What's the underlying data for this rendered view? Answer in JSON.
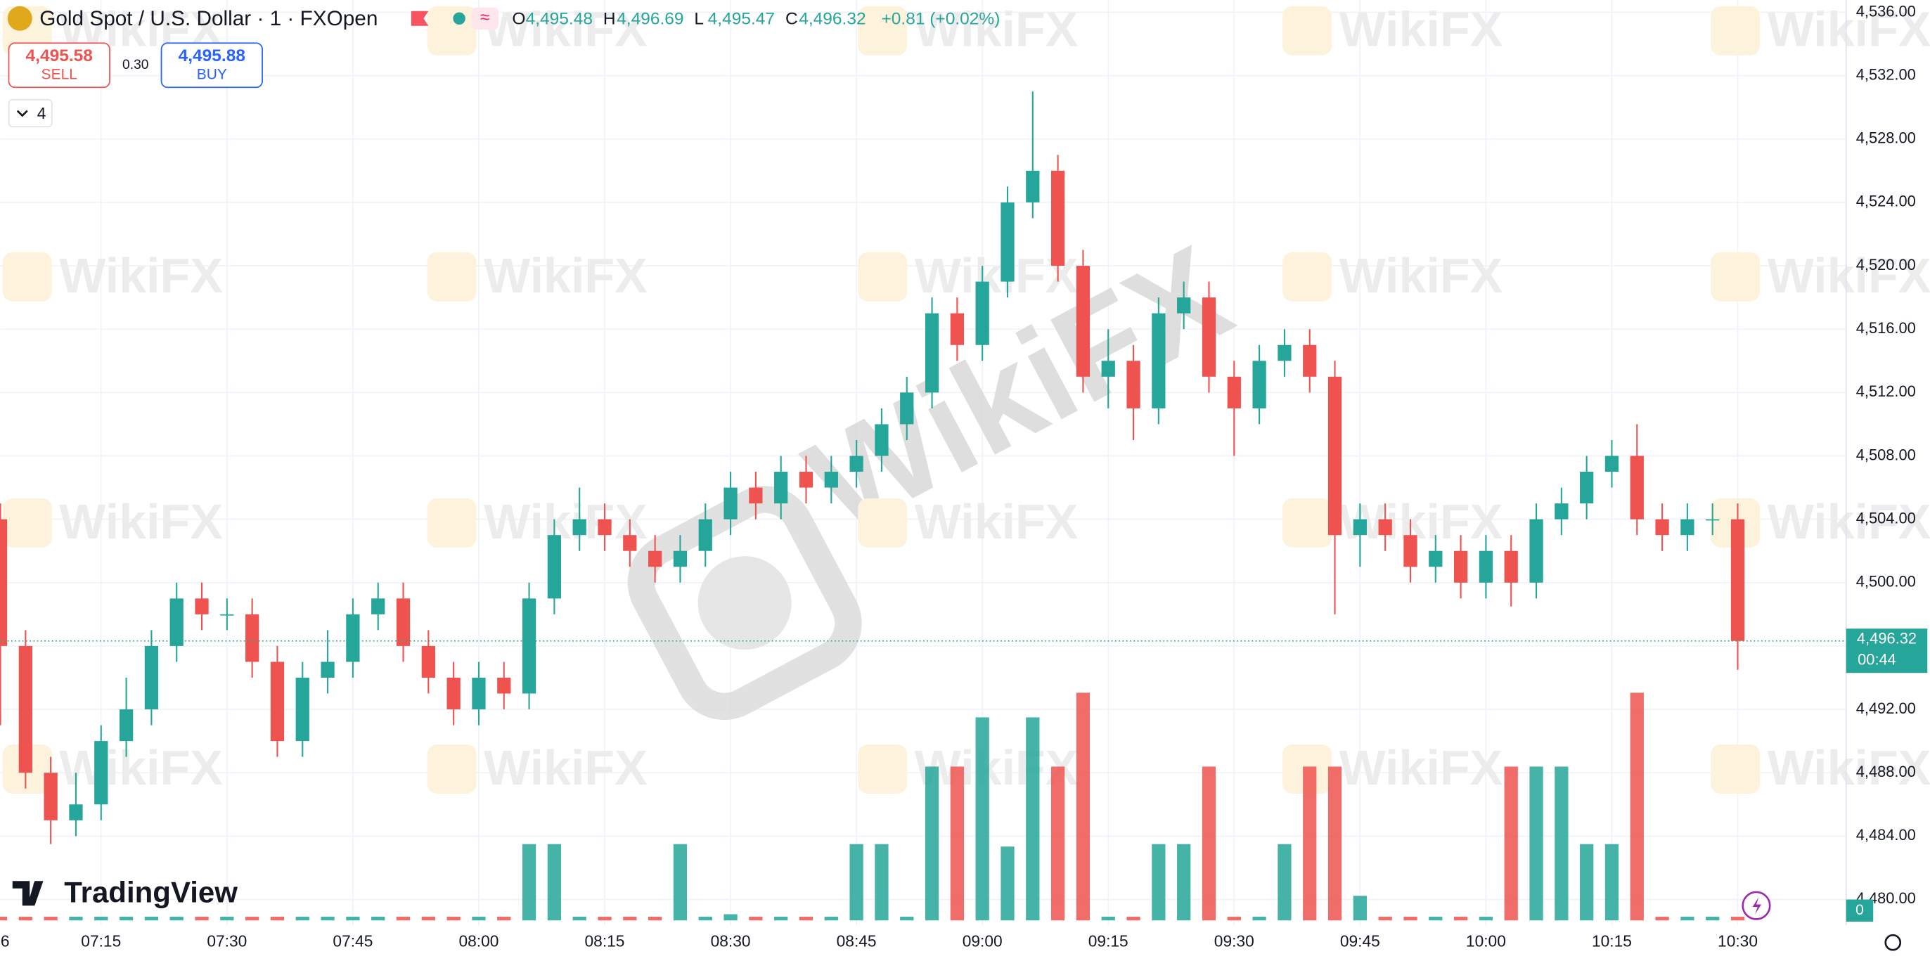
{
  "header": {
    "symbol": "Gold Spot / U.S. Dollar · 1 · FXOpen",
    "ohlc": [
      {
        "key": "O",
        "value": "4,495.48"
      },
      {
        "key": "H",
        "value": "4,496.69"
      },
      {
        "key": "L",
        "value": "4,495.47"
      },
      {
        "key": "C",
        "value": "4,496.32"
      }
    ],
    "change": "+0.81 (+0.02%)",
    "sell_price": "4,495.58",
    "sell_label": "SELL",
    "spread": "0.30",
    "buy_price": "4,495.88",
    "buy_label": "BUY",
    "indicators": "4",
    "brand": "TradingView",
    "watermark": "WikiFX"
  },
  "chart_data": {
    "type": "candlestick",
    "up_color": "#26a69a",
    "down_color": "#ef5350",
    "x": [
      "07:03",
      "07:06",
      "07:09",
      "07:12",
      "07:15",
      "07:18",
      "07:21",
      "07:24",
      "07:27",
      "07:30",
      "07:33",
      "07:36",
      "07:39",
      "07:42",
      "07:45",
      "07:48",
      "07:51",
      "07:54",
      "07:57",
      "08:00",
      "08:03",
      "08:06",
      "08:09",
      "08:12",
      "08:15",
      "08:18",
      "08:21",
      "08:24",
      "08:27",
      "08:30",
      "08:33",
      "08:36",
      "08:39",
      "08:42",
      "08:45",
      "08:48",
      "08:51",
      "08:54",
      "08:57",
      "09:00",
      "09:03",
      "09:06",
      "09:09",
      "09:12",
      "09:15",
      "09:18",
      "09:21",
      "09:24",
      "09:27",
      "09:30",
      "09:33",
      "09:36",
      "09:39",
      "09:42",
      "09:45",
      "09:48",
      "09:51",
      "09:54",
      "09:57",
      "10:00",
      "10:03",
      "10:06",
      "10:09",
      "10:12",
      "10:15",
      "10:18",
      "10:21",
      "10:24",
      "10:27",
      "10:30"
    ],
    "open": [
      4504,
      4496,
      4488,
      4485,
      4486,
      4490,
      4492,
      4496,
      4499,
      4498,
      4498,
      4495,
      4490,
      4494,
      4495,
      4498,
      4499,
      4496,
      4494,
      4492,
      4494,
      4493,
      4499,
      4503,
      4504,
      4503,
      4502,
      4501,
      4502,
      4504,
      4506,
      4505,
      4507,
      4506,
      4507,
      4508,
      4510,
      4512,
      4517,
      4515,
      4519,
      4524,
      4526,
      4520,
      4513,
      4514,
      4511,
      4517,
      4518,
      4513,
      4511,
      4514,
      4515,
      4513,
      4503,
      4504,
      4503,
      4501,
      4502,
      4500,
      4502,
      4500,
      4504,
      4505,
      4507,
      4508,
      4504,
      4503,
      4504,
      4504
    ],
    "high": [
      4505,
      4497,
      4489,
      4488,
      4491,
      4494,
      4497,
      4500,
      4500,
      4499,
      4499,
      4496,
      4495,
      4497,
      4499,
      4500,
      4500,
      4497,
      4495,
      4495,
      4495,
      4500,
      4504,
      4506,
      4505,
      4504,
      4503,
      4503,
      4505,
      4507,
      4507,
      4508,
      4508,
      4508,
      4509,
      4511,
      4513,
      4518,
      4518,
      4520,
      4525,
      4531,
      4527,
      4521,
      4516,
      4515,
      4518,
      4519,
      4519,
      4514,
      4515,
      4516,
      4516,
      4514,
      4505,
      4505,
      4504,
      4503,
      4503,
      4503,
      4503,
      4505,
      4506,
      4508,
      4509,
      4510,
      4505,
      4505,
      4505,
      4505
    ],
    "low": [
      4491,
      4487,
      4483.5,
      4484,
      4485,
      4489,
      4491,
      4495,
      4497,
      4497,
      4494,
      4489,
      4489,
      4493,
      4494,
      4497,
      4495,
      4493,
      4491,
      4491,
      4492,
      4492,
      4498,
      4502,
      4502,
      4501,
      4500,
      4500,
      4501,
      4503,
      4504,
      4504,
      4505,
      4505,
      4506,
      4507,
      4509,
      4511,
      4514,
      4514,
      4518,
      4523,
      4519,
      4512,
      4511,
      4509,
      4510,
      4516,
      4512,
      4508,
      4510,
      4513,
      4512,
      4498,
      4501,
      4502,
      4500,
      4500,
      4499,
      4499,
      4498.5,
      4499,
      4503,
      4504,
      4506,
      4503,
      4502,
      4502,
      4503,
      4494.5
    ],
    "close": [
      4496,
      4488,
      4485,
      4486,
      4490,
      4492,
      4496,
      4499,
      4498,
      4498,
      4495,
      4490,
      4494,
      4495,
      4498,
      4499,
      4496,
      4494,
      4492,
      4494,
      4493,
      4499,
      4503,
      4504,
      4503,
      4502,
      4501,
      4502,
      4504,
      4506,
      4505,
      4507,
      4506,
      4507,
      4508,
      4510,
      4512,
      4517,
      4515,
      4519,
      4524,
      4526,
      4520,
      4513,
      4514,
      4511,
      4517,
      4518,
      4513,
      4511,
      4514,
      4515,
      4513,
      4503,
      4504,
      4503,
      4501,
      4502,
      4500,
      4502,
      4500,
      4504,
      4505,
      4507,
      4508,
      4504,
      4503,
      4504,
      4504,
      4496.32
    ],
    "volume": [
      3,
      3,
      3,
      3,
      3,
      3,
      3,
      3,
      3,
      3,
      3,
      3,
      3,
      3,
      3,
      3,
      3,
      3,
      3,
      3,
      3,
      62,
      62,
      3,
      3,
      3,
      3,
      62,
      3,
      5,
      3,
      3,
      3,
      3,
      62,
      62,
      3,
      125,
      125,
      165,
      60,
      165,
      125,
      185,
      3,
      3,
      62,
      62,
      125,
      3,
      3,
      62,
      125,
      125,
      20,
      3,
      3,
      3,
      3,
      3,
      125,
      125,
      125,
      62,
      62,
      185,
      3,
      3,
      3,
      3
    ],
    "volume_ylim": [
      0,
      240
    ],
    "volume_ticks": [
      0
    ],
    "ylim": [
      4480,
      4536
    ],
    "yticks": [
      {
        "value": 4480,
        "label": "4,480.00"
      },
      {
        "value": 4484,
        "label": "4,484.00"
      },
      {
        "value": 4488,
        "label": "4,488.00"
      },
      {
        "value": 4492,
        "label": "4,492.00"
      },
      {
        "value": 4496,
        "label": "4,496.00"
      },
      {
        "value": 4500,
        "label": "4,500.00"
      },
      {
        "value": 4504,
        "label": "4,504.00"
      },
      {
        "value": 4508,
        "label": "4,508.00"
      },
      {
        "value": 4512,
        "label": "4,512.00"
      },
      {
        "value": 4516,
        "label": "4,516.00"
      },
      {
        "value": 4520,
        "label": "4,520.00"
      },
      {
        "value": 4524,
        "label": "4,524.00"
      },
      {
        "value": 4528,
        "label": "4,528.00"
      },
      {
        "value": 4532,
        "label": "4,532.00"
      },
      {
        "value": 4536,
        "label": "4,536.00"
      }
    ],
    "xticks": [
      "07:15",
      "07:30",
      "07:45",
      "08:00",
      "08:15",
      "08:30",
      "08:45",
      "09:00",
      "09:15",
      "09:30",
      "09:45",
      "10:00",
      "10:15",
      "10:30"
    ],
    "x_edge_label": "6",
    "last_price": 4496.32,
    "last_label": "4,496.32",
    "countdown": "00:44",
    "grid": true
  }
}
